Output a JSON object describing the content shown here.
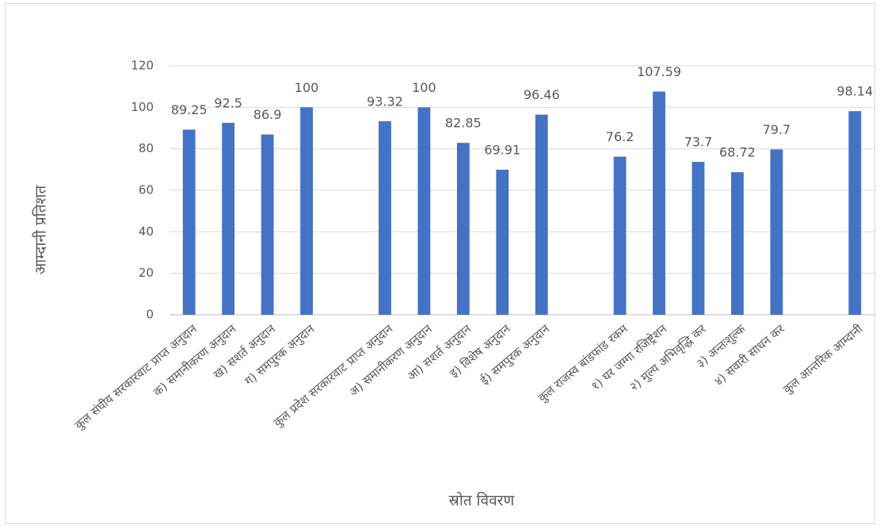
{
  "chart_data": {
    "type": "bar",
    "x_label": "स्रोत विवरण",
    "y_label": "आम्दानी प्रतिशत",
    "categories": [
      "कुल संघीय सरकारवाट प्राप्त अनुदान",
      "क) समानीकरण अनुदान",
      "ख) सशर्त अनुदान",
      "ग) समपुरक अनुदान",
      null,
      "कुल प्रदेश सरकारवाट प्राप्त अनुदान",
      "अ) समानीकरण अनुदान",
      "आ) सशर्त अनुदान",
      "इ) विशेष अनुदान",
      "ई) समपुरक अनुदान",
      null,
      "कुल राजस्व बांडफांड रकम",
      "१) घर जग्गा रजिष्ट्रेशन",
      "२) मुल्य अभिवृद्धि कर",
      "३) अन्तःशुल्क",
      "४) सवारी साधन कर",
      null,
      "कुल आन्तरिक आम्दानी"
    ],
    "values": [
      89.25,
      92.5,
      86.9,
      100,
      null,
      93.32,
      100,
      82.85,
      69.91,
      96.46,
      null,
      76.2,
      107.59,
      73.7,
      68.72,
      79.7,
      null,
      98.14
    ],
    "color": "#4472c4",
    "ylim": [
      0,
      120
    ],
    "yticks": [
      0,
      20,
      40,
      60,
      80,
      100,
      120
    ],
    "grid": true
  }
}
